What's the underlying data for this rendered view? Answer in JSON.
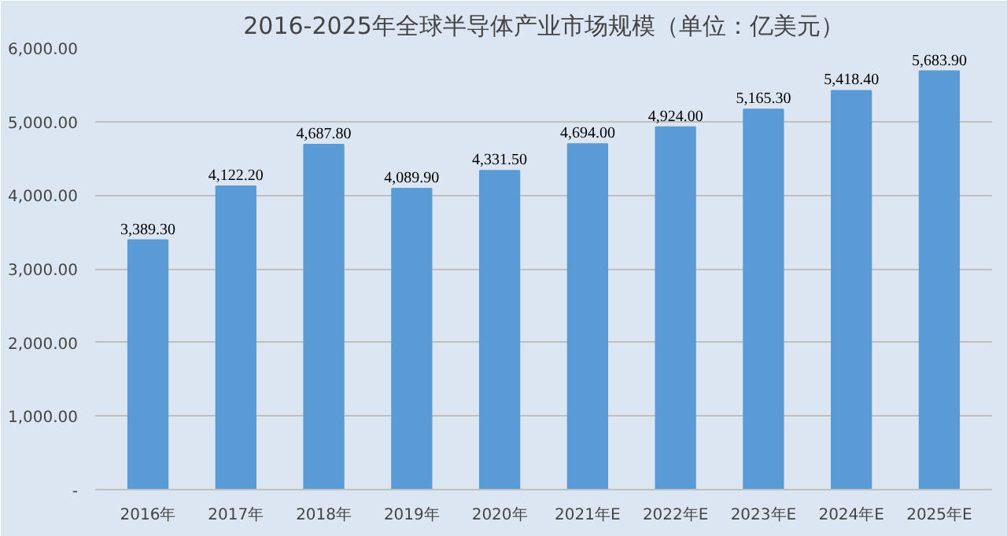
{
  "chart_data": {
    "type": "bar",
    "title": "2016-2025年全球半导体产业市场规模（单位：亿美元）",
    "categories": [
      "2016年",
      "2017年",
      "2018年",
      "2019年",
      "2020年",
      "2021年E",
      "2022年E",
      "2023年E",
      "2024年E",
      "2025年E"
    ],
    "values": [
      3389.3,
      4122.2,
      4687.8,
      4089.9,
      4331.5,
      4694.0,
      4924.0,
      5165.3,
      5418.4,
      5683.9
    ],
    "value_labels": [
      "3,389.30",
      "4,122.20",
      "4,687.80",
      "4,089.90",
      "4,331.50",
      "4,694.00",
      "4,924.00",
      "5,165.30",
      "5,418.40",
      "5,683.90"
    ],
    "color": "#5b9bd5",
    "ylim": [
      0,
      6000
    ],
    "yticks": [
      {
        "value": 0,
        "label": "-"
      },
      {
        "value": 1000,
        "label": "1,000.00"
      },
      {
        "value": 2000,
        "label": "2,000.00"
      },
      {
        "value": 3000,
        "label": "3,000.00"
      },
      {
        "value": 4000,
        "label": "4,000.00"
      },
      {
        "value": 5000,
        "label": "5,000.00"
      },
      {
        "value": 6000,
        "label": "6,000.00"
      }
    ],
    "grid": "y"
  }
}
